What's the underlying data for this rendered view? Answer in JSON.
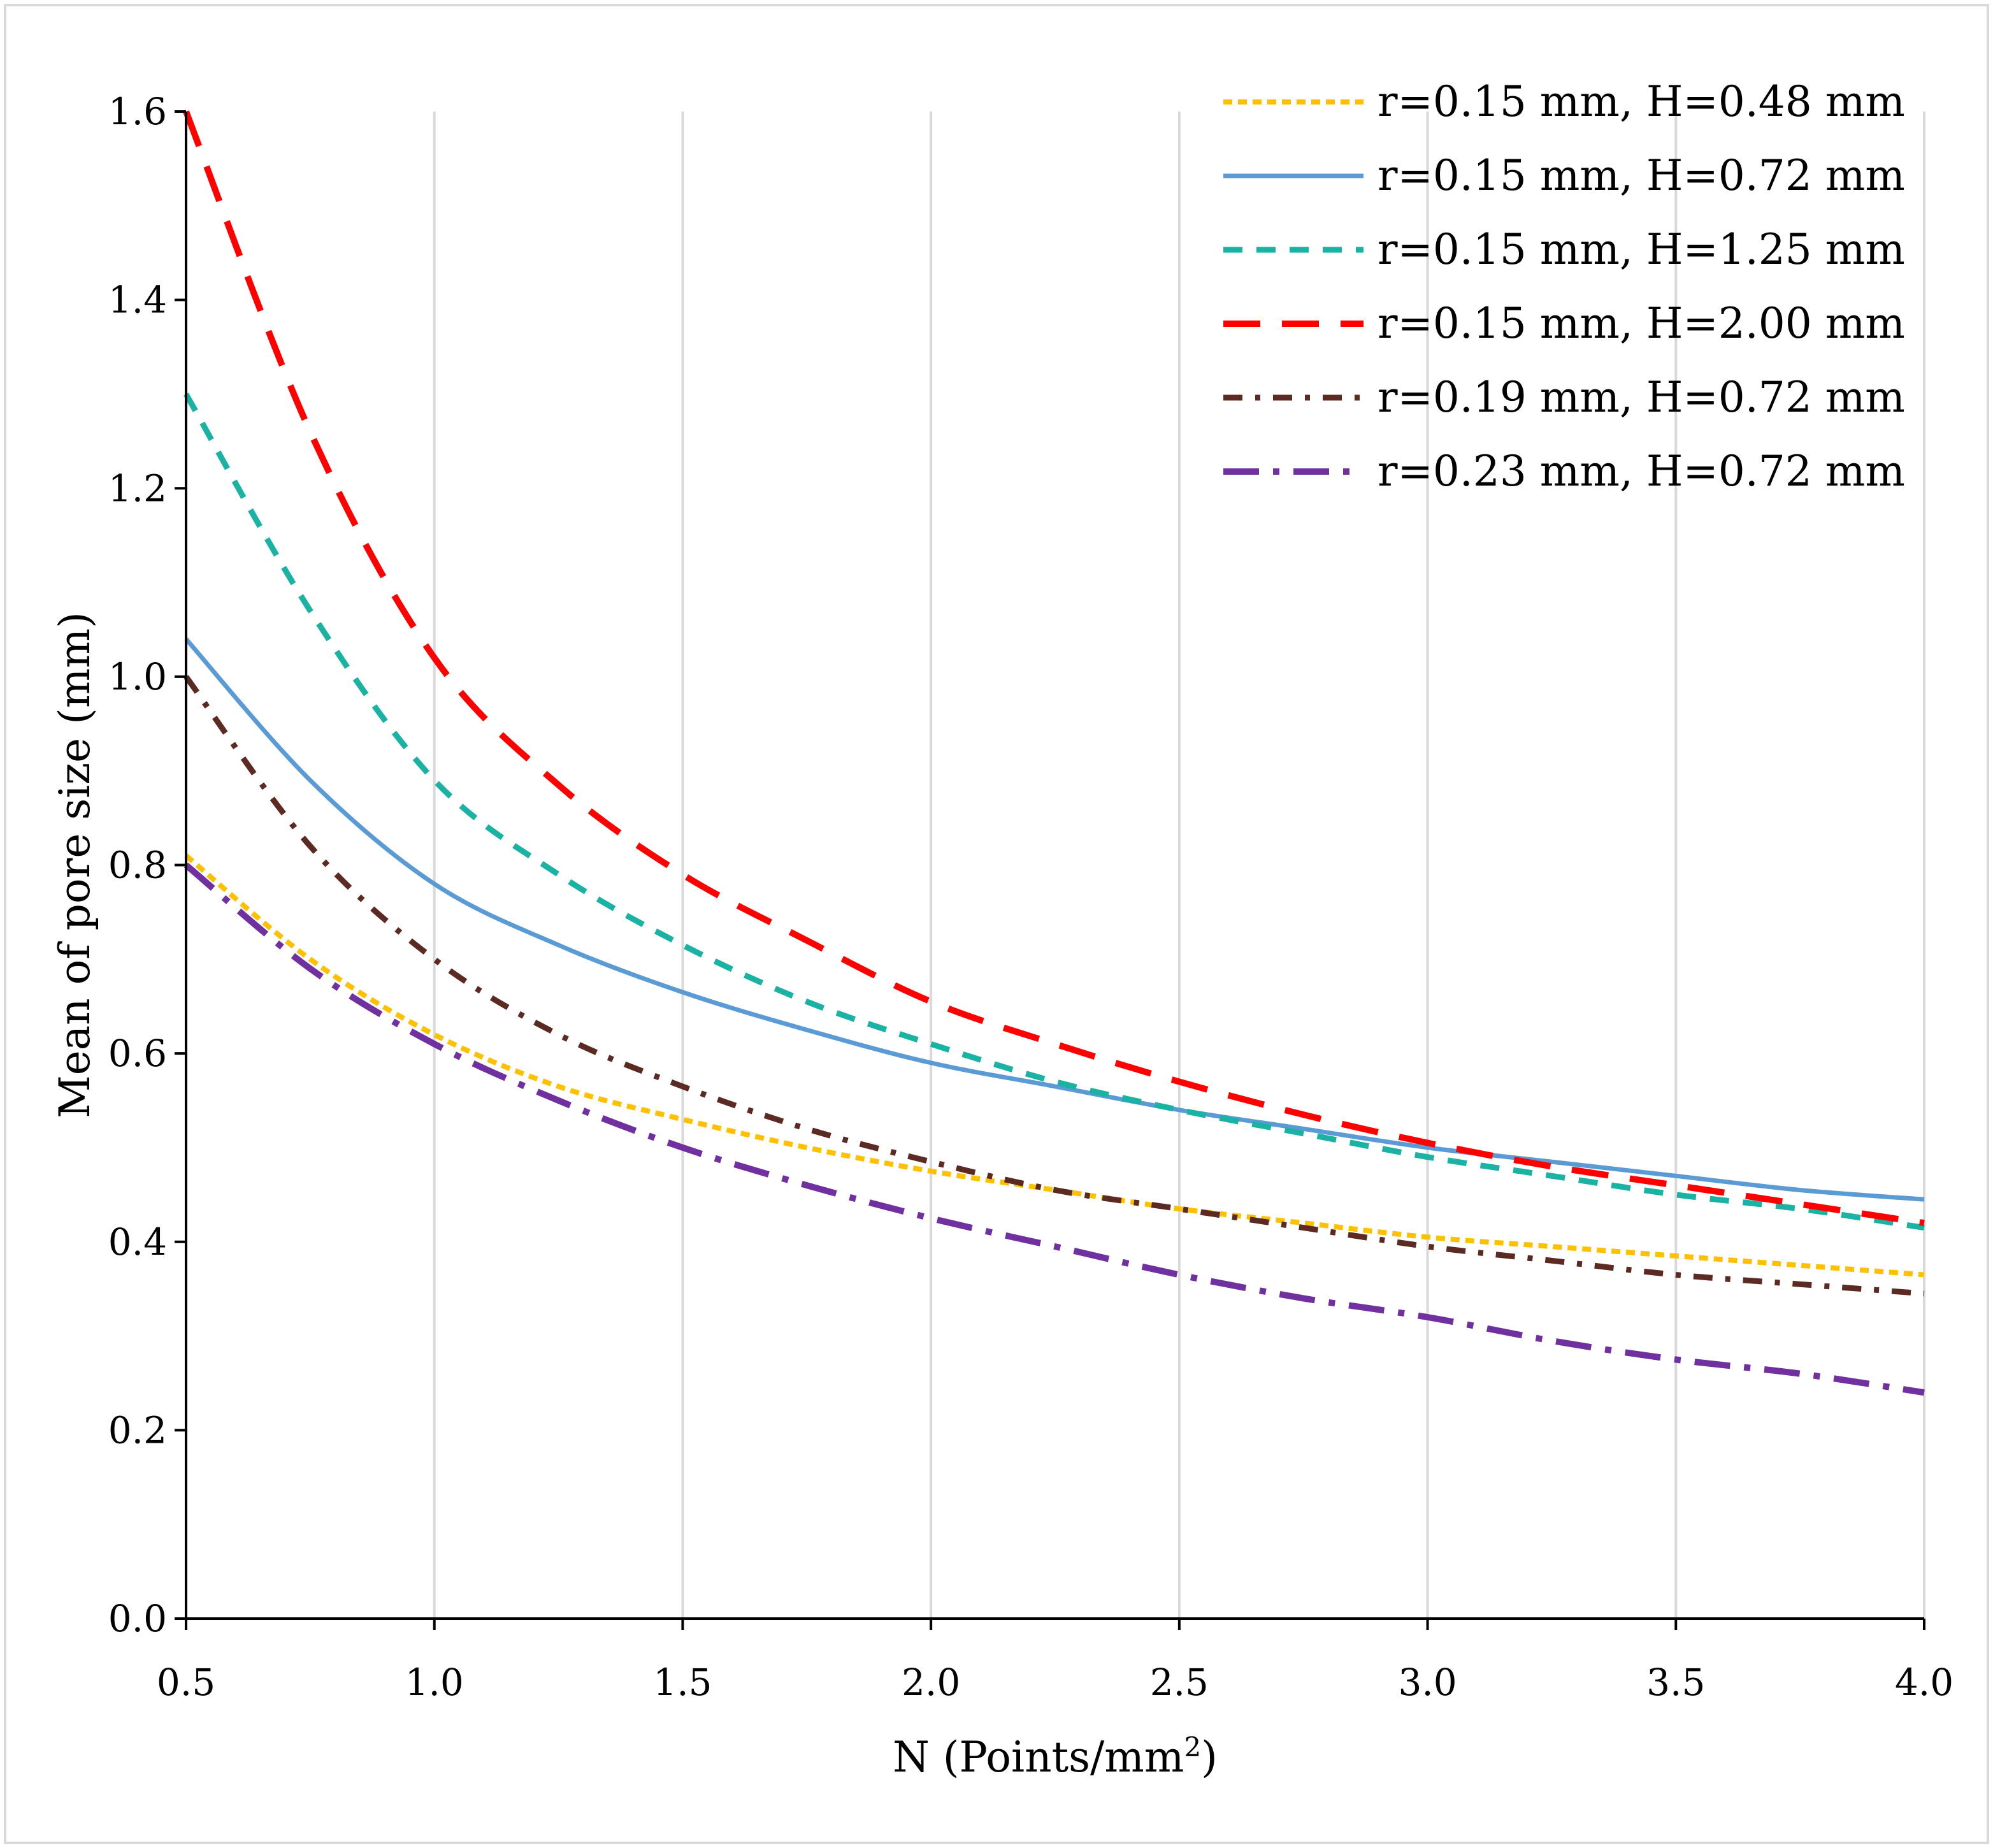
{
  "chart_data": {
    "type": "line",
    "title": "",
    "xlabel": "N (Points/mm",
    "xlabel_superscript": "2",
    "xlabel_suffix": ")",
    "ylabel": "Mean of pore size (mm)",
    "xlim": [
      0.5,
      4.0
    ],
    "ylim": [
      0.0,
      1.6
    ],
    "x_ticks": [
      0.5,
      1.0,
      1.5,
      2.0,
      2.5,
      3.0,
      3.5,
      4.0
    ],
    "x_tick_labels": [
      "0.5",
      "1.0",
      "1.5",
      "2.0",
      "2.5",
      "3.0",
      "3.5",
      "4.0"
    ],
    "y_ticks": [
      0.0,
      0.2,
      0.4,
      0.6,
      0.8,
      1.0,
      1.2,
      1.4,
      1.6
    ],
    "y_tick_labels": [
      "0.0",
      "0.2",
      "0.4",
      "0.6",
      "0.8",
      "1.0",
      "1.2",
      "1.4",
      "1.6"
    ],
    "grid": "vertical",
    "legend_position": "top-right",
    "x": [
      0.5,
      0.75,
      1.0,
      1.25,
      1.5,
      1.75,
      2.0,
      2.25,
      2.5,
      2.75,
      3.0,
      3.25,
      3.5,
      3.75,
      4.0
    ],
    "series": [
      {
        "name": "r=0.15 mm, H=0.48 mm",
        "color": "#FFC000",
        "dash": "short-dash",
        "values": [
          0.81,
          0.7,
          0.62,
          0.565,
          0.53,
          0.5,
          0.475,
          0.455,
          0.435,
          0.42,
          0.405,
          0.395,
          0.385,
          0.375,
          0.365
        ]
      },
      {
        "name": "r=0.15 mm, H=0.72 mm",
        "color": "#5B9BD5",
        "dash": "solid",
        "values": [
          1.04,
          0.89,
          0.78,
          0.715,
          0.665,
          0.625,
          0.59,
          0.565,
          0.54,
          0.52,
          0.5,
          0.485,
          0.47,
          0.455,
          0.445
        ]
      },
      {
        "name": "r=0.15 mm, H=1.25 mm",
        "color": "#1AB3A3",
        "dash": "dash",
        "values": [
          1.3,
          1.07,
          0.89,
          0.79,
          0.715,
          0.655,
          0.61,
          0.57,
          0.54,
          0.515,
          0.49,
          0.47,
          0.45,
          0.435,
          0.415
        ]
      },
      {
        "name": "r=0.15 mm, H=2.00 mm",
        "color": "#FF0000",
        "dash": "long-dash",
        "values": [
          1.6,
          1.26,
          1.02,
          0.885,
          0.79,
          0.72,
          0.655,
          0.61,
          0.57,
          0.535,
          0.505,
          0.48,
          0.46,
          0.44,
          0.42
        ]
      },
      {
        "name": "r=0.19 mm, H=0.72 mm",
        "color": "#5B2A22",
        "dash": "dash-dot",
        "values": [
          1.0,
          0.82,
          0.7,
          0.62,
          0.565,
          0.52,
          0.485,
          0.455,
          0.435,
          0.415,
          0.395,
          0.38,
          0.365,
          0.355,
          0.345
        ]
      },
      {
        "name": "r=0.23 mm, H=0.72 mm",
        "color": "#7030A0",
        "dash": "long-dash-dot",
        "values": [
          0.8,
          0.69,
          0.61,
          0.55,
          0.5,
          0.46,
          0.425,
          0.395,
          0.365,
          0.34,
          0.32,
          0.295,
          0.275,
          0.26,
          0.24
        ]
      }
    ]
  }
}
